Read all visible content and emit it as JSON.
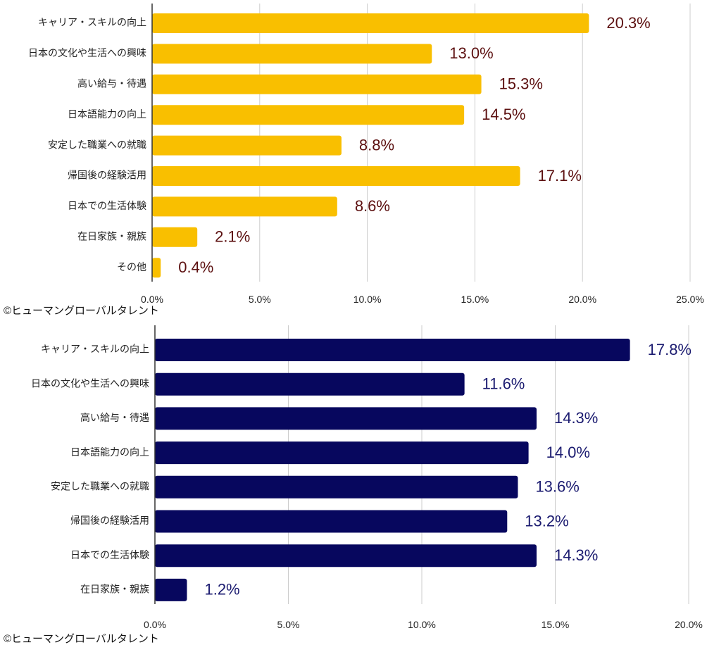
{
  "colors": {
    "top_bar": "#F9BF00",
    "top_label": "#5C1010",
    "bottom_bar": "#07075E",
    "bottom_label": "#1B1B70",
    "grid": "#CCCCCC",
    "axis": "#333333"
  },
  "chart_data": [
    {
      "type": "bar",
      "orientation": "horizontal",
      "categories": [
        "キャリア・スキルの向上",
        "日本の文化や生活への興味",
        "高い給与・待遇",
        "日本語能力の向上",
        "安定した職業への就職",
        "帰国後の経験活用",
        "日本での生活体験",
        "在日家族・親族",
        "その他"
      ],
      "values": [
        20.3,
        13.0,
        15.3,
        14.5,
        8.8,
        17.1,
        8.6,
        2.1,
        0.4
      ],
      "data_labels": [
        "20.3%",
        "13.0%",
        "15.3%",
        "14.5%",
        "8.8%",
        "17.1%",
        "8.6%",
        "2.1%",
        "0.4%"
      ],
      "xlim": [
        0,
        25
      ],
      "ticks": [
        "0.0%",
        "5.0%",
        "10.0%",
        "15.0%",
        "20.0%",
        "25.0%"
      ],
      "tick_values": [
        0,
        5,
        10,
        15,
        20,
        25
      ],
      "grid": true,
      "copyright": "©ヒューマングローバルタレント"
    },
    {
      "type": "bar",
      "orientation": "horizontal",
      "categories": [
        "キャリア・スキルの向上",
        "日本の文化や生活への興味",
        "高い給与・待遇",
        "日本語能力の向上",
        "安定した職業への就職",
        "帰国後の経験活用",
        "日本での生活体験",
        "在日家族・親族"
      ],
      "values": [
        17.8,
        11.6,
        14.3,
        14.0,
        13.6,
        13.2,
        14.3,
        1.2
      ],
      "data_labels": [
        "17.8%",
        "11.6%",
        "14.3%",
        "14.0%",
        "13.6%",
        "13.2%",
        "14.3%",
        "1.2%"
      ],
      "xlim": [
        0,
        20
      ],
      "ticks": [
        "0.0%",
        "5.0%",
        "10.0%",
        "15.0%",
        "20.0%"
      ],
      "tick_values": [
        0,
        5,
        10,
        15,
        20
      ],
      "grid": true,
      "copyright": "©ヒューマングローバルタレント"
    }
  ]
}
